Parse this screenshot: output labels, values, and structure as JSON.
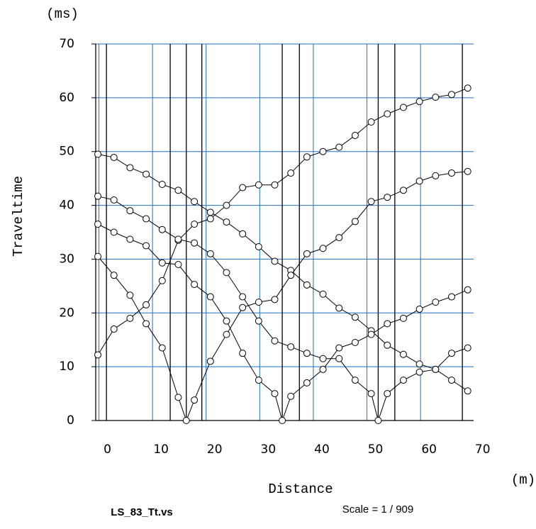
{
  "chart_data": {
    "type": "line",
    "y_unit": "(ms)",
    "y_label": "Traveltime",
    "x_label": "Distance",
    "x_unit": "(m)",
    "file_name": "LS_83_Tt.vs",
    "scale": "Scale = 1 / 909",
    "xlim": [
      -0.6,
      69.9
    ],
    "ylim": [
      0,
      70
    ],
    "xticks": [
      0,
      10,
      20,
      30,
      40,
      50,
      60,
      70
    ],
    "yticks": [
      0,
      10,
      20,
      30,
      40,
      50,
      60,
      70
    ],
    "grid": true,
    "grid_color": "#1f6fc8",
    "color": "#000000",
    "vlines": [
      1.4,
      13.3,
      16.3,
      19.2,
      34.2,
      37.4,
      52.1,
      55.2,
      67.8
    ],
    "series": [
      {
        "x": [
          -0.2,
          2.8,
          5.8,
          8.8,
          11.8,
          14.8,
          17.8,
          20.8,
          23.8,
          26.8,
          29.8,
          32.8,
          35.8,
          38.8,
          41.8,
          44.8,
          47.8,
          50.8,
          53.8,
          56.8,
          59.8,
          62.8,
          65.8,
          68.8
        ],
        "values": [
          12.2,
          17,
          19,
          21.5,
          26,
          33.5,
          36.5,
          37.5,
          40,
          43.3,
          43.8,
          43.8,
          46,
          49,
          50,
          50.8,
          53,
          55.5,
          57,
          58.2,
          59.3,
          60.1,
          60.6,
          61.8
        ]
      },
      {
        "x": [
          -0.2,
          2.8,
          5.8,
          8.8,
          11.8,
          14.8,
          17.8,
          20.8,
          23.8,
          26.8,
          29.8,
          32.8,
          35.8,
          38.8,
          41.8,
          44.8,
          47.8,
          50.8,
          53.8,
          56.8,
          59.8,
          62.8,
          65.8,
          68.8
        ],
        "values": [
          49.5,
          48.9,
          47,
          45.8,
          43.9,
          42.8,
          40.7,
          38.7,
          36.9,
          34.7,
          32.3,
          29.6,
          27.9,
          25.2,
          23.5,
          20.9,
          19.2,
          16.7,
          14,
          12.3,
          10.5,
          9.5,
          7.5,
          5.5
        ]
      },
      {
        "x": [
          -0.2,
          2.8,
          5.8,
          8.8,
          11.8,
          14.8,
          16.3,
          17.8,
          20.8,
          23.8,
          26.8,
          29.8,
          32.8,
          35.8,
          38.8,
          41.8,
          44.8,
          47.8,
          50.8,
          53.8,
          56.8,
          59.8,
          62.8,
          65.8,
          68.8
        ],
        "values": [
          30.5,
          27,
          23.3,
          18,
          13.5,
          4.3,
          0,
          3.8,
          11,
          16,
          21,
          22,
          22.5,
          27,
          31,
          32,
          34,
          37,
          40.7,
          41.5,
          42.8,
          44.5,
          45.5,
          46,
          46.3
        ]
      },
      {
        "x": [
          -0.2,
          2.8,
          5.8,
          8.8,
          11.8,
          14.8,
          17.8,
          20.8,
          23.8,
          26.8,
          29.8,
          32.8,
          34.2,
          35.8,
          38.8,
          41.8,
          44.8,
          47.8,
          50.8,
          53.8,
          56.8,
          59.8,
          62.8,
          65.8,
          68.8
        ],
        "values": [
          36.5,
          35,
          33.7,
          32.5,
          29.3,
          29,
          25.3,
          23,
          18.5,
          12.5,
          7.5,
          5,
          0,
          4.5,
          7,
          9.5,
          13.5,
          14.5,
          16,
          18,
          19,
          20.7,
          22,
          23,
          24.3
        ]
      },
      {
        "x": [
          -0.2,
          2.8,
          5.8,
          8.8,
          11.8,
          14.8,
          17.8,
          20.8,
          23.8,
          26.8,
          29.8,
          32.8,
          35.8,
          38.8,
          41.8,
          44.8,
          47.8,
          50.8,
          52.1,
          53.8,
          56.8,
          59.8,
          62.8,
          65.8,
          68.8
        ],
        "values": [
          41.7,
          41,
          39,
          37.5,
          35.5,
          33.7,
          33,
          31,
          27.5,
          23,
          18.5,
          14.8,
          13.7,
          12.5,
          11.5,
          11.5,
          7.5,
          5,
          0,
          5,
          7.5,
          9,
          9.5,
          12.5,
          13.5
        ]
      }
    ]
  }
}
